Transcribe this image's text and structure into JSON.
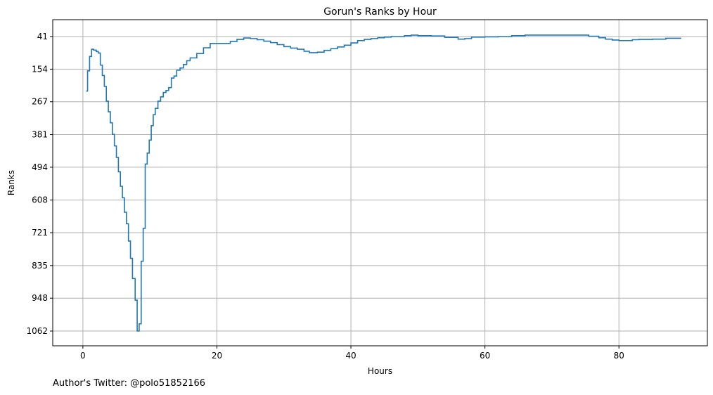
{
  "chart_data": {
    "type": "line",
    "style": "step",
    "title": "Gorun's Ranks by Hour",
    "xlabel": "Hours",
    "ylabel": "Ranks",
    "xlim": [
      -4.5,
      93.2
    ],
    "ylim": [
      1062,
      41
    ],
    "y_inverted": true,
    "y_pad_bottom": 28,
    "y_pad_top": 14,
    "xticks": [
      0,
      20,
      40,
      60,
      80
    ],
    "yticks": [
      41,
      154,
      267,
      381,
      494,
      608,
      721,
      835,
      948,
      1062
    ],
    "grid": true,
    "line_color": "#1f77b4",
    "series": [
      {
        "x": [
          0.5,
          0.7,
          1.0,
          1.3,
          1.6,
          2.0,
          2.3,
          2.6,
          2.9,
          3.2,
          3.5,
          3.8,
          4.1,
          4.4,
          4.7,
          5.0,
          5.3,
          5.6,
          5.9,
          6.2,
          6.5,
          6.8,
          7.1,
          7.4,
          7.8,
          8.1,
          8.4,
          8.7,
          9.0,
          9.3,
          9.6,
          9.9,
          10.2,
          10.5,
          10.8,
          11.2,
          11.6,
          12.0,
          12.4,
          12.8,
          13.2,
          13.6,
          14.0,
          14.5,
          15.0,
          15.5,
          16.0,
          17.0,
          18.0,
          19.0,
          20.0,
          21.0,
          22.0,
          23.0,
          24.0,
          25.0,
          26.0,
          27.0,
          28.0,
          29.0,
          30.0,
          31.0,
          32.0,
          33.0,
          33.8,
          35.0,
          36.0,
          37.0,
          38.0,
          39.0,
          40.0,
          41.0,
          42.0,
          43.0,
          44.0,
          45.0,
          46.0,
          47.0,
          48.0,
          49.0,
          50.0,
          52.0,
          54.0,
          56.0,
          57.0,
          58.0,
          60.0,
          62.0,
          64.0,
          66.0,
          68.0,
          70.0,
          72.0,
          74.0,
          75.5,
          77.0,
          78.0,
          79.0,
          80.0,
          81.0,
          82.0,
          83.0,
          85.0,
          87.0,
          89.3
        ],
        "y": [
          230,
          160,
          110,
          85,
          88,
          93,
          98,
          140,
          176,
          214,
          265,
          302,
          340,
          380,
          420,
          460,
          510,
          560,
          600,
          650,
          690,
          750,
          810,
          880,
          955,
          1062,
          1037,
          820,
          706,
          483,
          445,
          400,
          350,
          312,
          290,
          265,
          250,
          235,
          228,
          218,
          185,
          178,
          158,
          150,
          138,
          125,
          115,
          100,
          80,
          65,
          65,
          65,
          58,
          51,
          46,
          48,
          52,
          57,
          62,
          69,
          76,
          81,
          85,
          92,
          97,
          95,
          89,
          83,
          77,
          71,
          63,
          55,
          51,
          48,
          45,
          43,
          41,
          41,
          38,
          36,
          38,
          39,
          44,
          50,
          48,
          43,
          42,
          41,
          38,
          36,
          36,
          36,
          36,
          36,
          40,
          45,
          50,
          53,
          55,
          55,
          52,
          51,
          50,
          47,
          47
        ]
      }
    ]
  },
  "credit": "Author's Twitter: @polo51852166"
}
